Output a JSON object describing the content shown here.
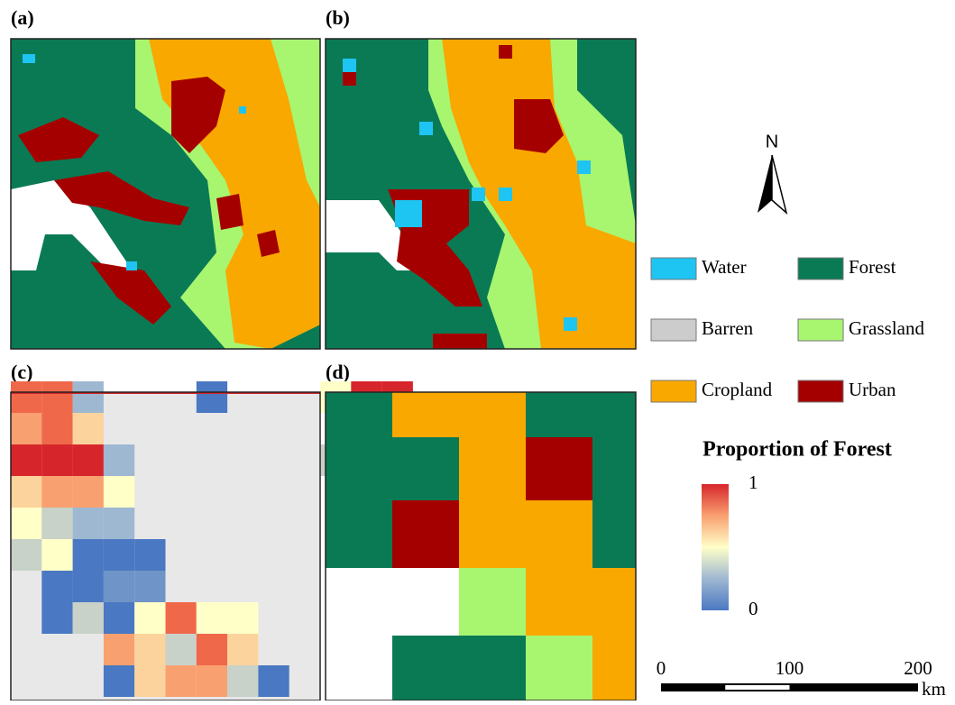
{
  "panels": {
    "a": "(a)",
    "b": "(b)",
    "c": "(c)",
    "d": "(d)"
  },
  "north": "N",
  "legend": {
    "items": [
      "Water",
      "Forest",
      "Barren",
      "Grassland",
      "Cropland",
      "Urban"
    ]
  },
  "colorbar": {
    "title": "Proportion of Forest",
    "max": "1",
    "min": "0"
  },
  "scale": {
    "ticks": [
      0,
      100,
      200
    ],
    "unit": "km"
  }
}
